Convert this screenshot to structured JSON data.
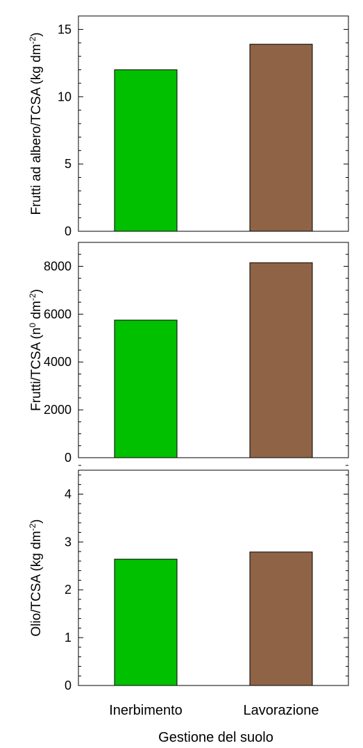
{
  "chart_data": [
    {
      "type": "bar",
      "categories": [
        "Inerbimento",
        "Lavorazione"
      ],
      "values": [
        12.0,
        13.9
      ],
      "colors": [
        "#00c000",
        "#8f6446"
      ],
      "ylabel": "Frutti ad albero/TCSA (kg dm-2)",
      "ylabel_parts": {
        "main": "Frutti ad albero/TCSA (kg dm",
        "sup": "-2",
        "end": ")"
      },
      "ylim": [
        0,
        16
      ],
      "major_ticks": [
        0,
        5,
        10,
        15
      ],
      "minor_step": 1,
      "grid": false
    },
    {
      "type": "bar",
      "categories": [
        "Inerbimento",
        "Lavorazione"
      ],
      "values": [
        5750,
        8150
      ],
      "colors": [
        "#00c000",
        "#8f6446"
      ],
      "ylabel": "Frutti/TCSA (n0 dm-2)",
      "ylabel_parts": {
        "main": "Frutti/TCSA (n",
        "sup": "0",
        "mid": " dm",
        "sup2": "-2",
        "end": ")"
      },
      "ylim": [
        0,
        9000
      ],
      "major_ticks": [
        0,
        2000,
        4000,
        6000,
        8000
      ],
      "minor_step": 500,
      "grid": false
    },
    {
      "type": "bar",
      "categories": [
        "Inerbimento",
        "Lavorazione"
      ],
      "values": [
        2.64,
        2.79
      ],
      "colors": [
        "#00c000",
        "#8f6446"
      ],
      "ylabel": "Olio/TCSA (kg dm-2)",
      "ylabel_parts": {
        "main": "Olio/TCSA (kg dm",
        "sup": "-2",
        "end": ")"
      },
      "ylim": [
        0,
        4.5
      ],
      "major_ticks": [
        0,
        1,
        2,
        3,
        4
      ],
      "minor_step": 0.2,
      "grid": false
    }
  ],
  "x_categories": [
    "Inerbimento",
    "Lavorazione"
  ],
  "xlabel": "Gestione del suolo"
}
